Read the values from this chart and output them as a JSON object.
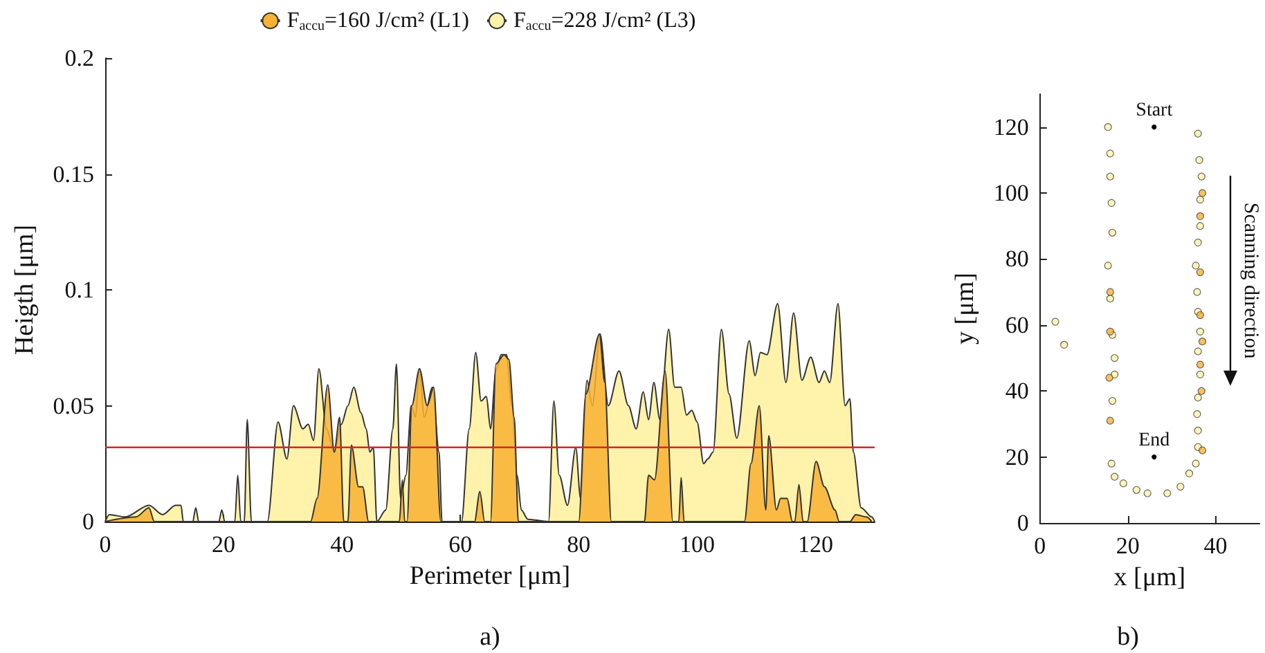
{
  "chart_data": [
    {
      "type": "area",
      "xlabel": "Perimeter [μm]",
      "ylabel": "Heigth [μm]",
      "xlim": [
        0,
        130
      ],
      "xticks": [
        0,
        20,
        40,
        60,
        80,
        100,
        120
      ],
      "ylim": [
        0,
        0.2
      ],
      "yticks": [
        0,
        0.05,
        0.1,
        0.15,
        0.2
      ],
      "grid": false,
      "legend": "top",
      "annotations": [
        "a)"
      ],
      "ref_lines": [
        {
          "axis": "y",
          "value": 0.032,
          "color": "#d62728"
        }
      ],
      "series": [
        {
          "name": "F$_{accu}$=160 J/cm² (L1)",
          "color": "#f9b233",
          "x": [
            0,
            5.2,
            7.4,
            8.3,
            34.7,
            35.8,
            37.6,
            38.7,
            39.6,
            40.3,
            41,
            41.6,
            42.8,
            43.5,
            44.5,
            49.7,
            50.2,
            50.6,
            51,
            51.8,
            53.1,
            54.4,
            55.5,
            56.7,
            62.4,
            63.3,
            64.1,
            65.1,
            66,
            67.4,
            68.2,
            69.1,
            69.8,
            80,
            81.2,
            83.5,
            84.4,
            85.5,
            91.1,
            91.8,
            92.8,
            94.6,
            95.9,
            96.9,
            97.3,
            97.8,
            108,
            109.1,
            110.5,
            111.6,
            112.1,
            113.4,
            114.1,
            115.2,
            116.1,
            116.5,
            117.2,
            117.9,
            118.6,
            120.1,
            121.5,
            123.3,
            124,
            125.8,
            126.8,
            128.6,
            129.5
          ],
          "values": [
            0,
            0.002,
            0.006,
            0,
            0,
            0.01,
            0.059,
            0.03,
            0.045,
            0,
            0,
            0.033,
            0.015,
            0.015,
            0,
            0,
            0.018,
            0,
            0,
            0.05,
            0.066,
            0.05,
            0.058,
            0,
            0,
            0.013,
            0,
            0,
            0.068,
            0.072,
            0.07,
            0.045,
            0,
            0,
            0.055,
            0.081,
            0.06,
            0,
            0,
            0.02,
            0.018,
            0.065,
            0,
            0,
            0.019,
            0,
            0,
            0.025,
            0.05,
            0.005,
            0.037,
            0.005,
            0.01,
            0.01,
            0,
            0,
            0.016,
            0,
            0,
            0.026,
            0.015,
            0.005,
            0,
            0,
            0.003,
            0.002,
            0
          ]
        },
        {
          "name": "F$_{accu}$=228 J/cm² (L3)",
          "color": "#fff2aa",
          "x": [
            0,
            0.7,
            3.4,
            7.4,
            9.7,
            11.9,
            12.8,
            13.2,
            14.8,
            15.3,
            15.8,
            19.2,
            19.7,
            20.2,
            21.9,
            22.4,
            22.9,
            23.5,
            24,
            24.7,
            27.4,
            29.2,
            30.7,
            31.8,
            33.4,
            34.3,
            35.2,
            36.1,
            37.4,
            38.7,
            39.9,
            41,
            42,
            43.2,
            44.1,
            44.7,
            45.3,
            45.9,
            47.4,
            48.6,
            49.2,
            49.9,
            50.8,
            51.7,
            52.4,
            53.1,
            53.9,
            55.3,
            56.4,
            56.9,
            60.2,
            61.5,
            62.6,
            63.5,
            64.4,
            65.1,
            66,
            66.9,
            67.8,
            68.7,
            69.6,
            70.3,
            71.4,
            74.9,
            75.8,
            76.7,
            78.1,
            79.5,
            80.3,
            81.4,
            82.3,
            83.6,
            85,
            86.8,
            88.4,
            89.7,
            90.9,
            91.8,
            92.7,
            93.7,
            95.2,
            96.2,
            97.3,
            98.2,
            99.1,
            100,
            101.1,
            101.8,
            102.7,
            104.1,
            105.4,
            106.7,
            108.8,
            109.8,
            110.7,
            111.8,
            113.6,
            115,
            116.3,
            117.7,
            119.2,
            120.6,
            121.5,
            122.4,
            123.8,
            125,
            125.8,
            126.4,
            127.7,
            129.5,
            130
          ],
          "values": [
            0,
            0.003,
            0.002,
            0.007,
            0.003,
            0.007,
            0.007,
            0,
            0,
            0.006,
            0,
            0,
            0.005,
            0,
            0,
            0.02,
            0,
            0,
            0.044,
            0,
            0,
            0.043,
            0.027,
            0.05,
            0.04,
            0.042,
            0.035,
            0.066,
            0.04,
            0.03,
            0.042,
            0.05,
            0.058,
            0.047,
            0.04,
            0.03,
            0.032,
            0,
            0.005,
            0.04,
            0.068,
            0.01,
            0.02,
            0.05,
            0.045,
            0.066,
            0.045,
            0.058,
            0.03,
            0,
            0,
            0.04,
            0.073,
            0.052,
            0.054,
            0.04,
            0.065,
            0.072,
            0.072,
            0.05,
            0.02,
            0.005,
            0.001,
            0,
            0.052,
            0.02,
            0.007,
            0.032,
            0.01,
            0.061,
            0.05,
            0.081,
            0.05,
            0.065,
            0.05,
            0.04,
            0.056,
            0.044,
            0.06,
            0.044,
            0.083,
            0.058,
            0.058,
            0.046,
            0.048,
            0.043,
            0.025,
            0.027,
            0.03,
            0.083,
            0.055,
            0.036,
            0.078,
            0.063,
            0.073,
            0.072,
            0.094,
            0.06,
            0.09,
            0.061,
            0.071,
            0.06,
            0.065,
            0.06,
            0.094,
            0.05,
            0.053,
            0.03,
            0.006,
            0.002,
            0
          ]
        }
      ]
    },
    {
      "type": "scatter",
      "xlabel": "x [μm]",
      "ylabel": "y [μm]",
      "xlim": [
        0,
        50
      ],
      "xticks": [
        0,
        20,
        40
      ],
      "ylim": [
        0,
        130
      ],
      "yticks": [
        0,
        20,
        40,
        60,
        80,
        100,
        120
      ],
      "grid": false,
      "legend": false,
      "marker": "circle",
      "annotations": [
        {
          "text": "Start",
          "x": 26,
          "y": 120
        },
        {
          "text": "End",
          "x": 26,
          "y": 20
        },
        "Scanning direction",
        "b)"
      ],
      "series": [
        {
          "color": "#fff2aa",
          "x": [
            15.5,
            16,
            16,
            16.3,
            16.5,
            15.5,
            16,
            16.5,
            17,
            17,
            16.5,
            16.3,
            17,
            19,
            22,
            24.5,
            29,
            32,
            34,
            35.5,
            36,
            36,
            35.8,
            36,
            36.5,
            36,
            36.5,
            36,
            35.8,
            35.5,
            36,
            36.5,
            36.5,
            36.8,
            36.3,
            36,
            3.5,
            5.5
          ],
          "values": [
            120,
            112,
            105,
            97,
            88,
            78,
            68,
            57,
            50,
            45,
            37,
            18,
            14,
            12,
            10,
            9,
            9,
            11,
            15,
            18,
            23,
            28,
            33,
            38,
            45,
            52,
            58,
            64,
            70,
            78,
            85,
            90,
            98,
            105,
            110,
            118,
            61,
            54
          ]
        },
        {
          "color": "#f9b233",
          "x": [
            16,
            16,
            15.8,
            16,
            36.5,
            37,
            36.5,
            36.8,
            37,
            37,
            36.5,
            36.5
          ],
          "values": [
            70,
            58,
            44,
            31,
            63,
            55,
            48,
            40,
            22,
            100,
            76,
            93
          ]
        }
      ]
    }
  ]
}
